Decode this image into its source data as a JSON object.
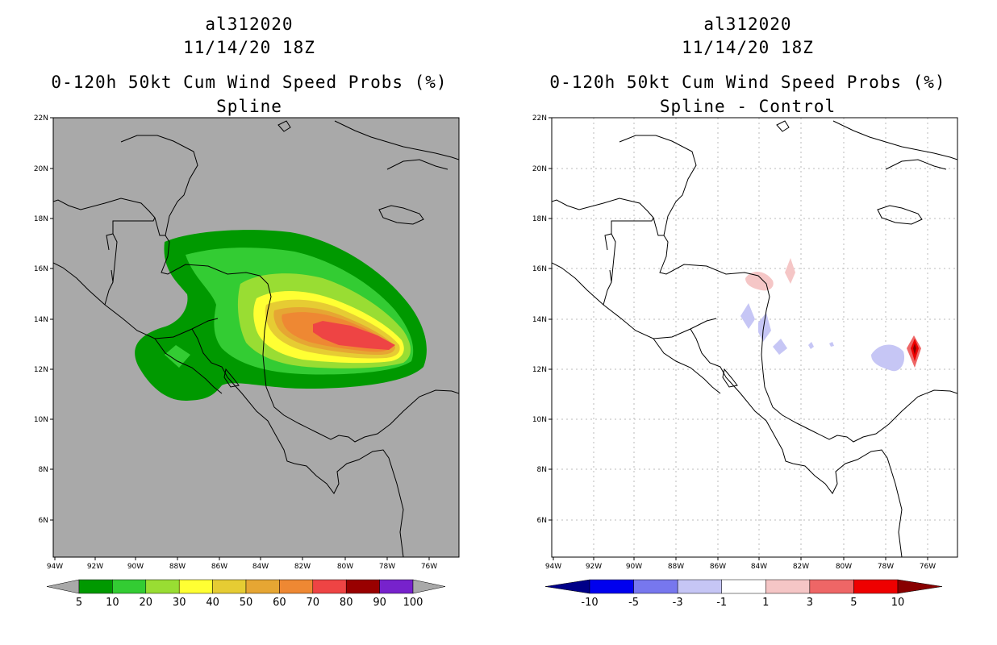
{
  "left": {
    "storm_id": "al312020",
    "datetime": "11/14/20 18Z",
    "product": "0-120h 50kt Cum Wind Speed Probs (%)",
    "subtitle": "Spline",
    "background_color": "#a9a9a9",
    "colorbar": {
      "colors": [
        "#009900",
        "#33cc33",
        "#99dd33",
        "#ffff33",
        "#e6cc33",
        "#e6a633",
        "#ee8833",
        "#ee4444",
        "#990000",
        "#7722cc"
      ],
      "end_left": "#a9a9a9",
      "end_right": "#a9a9a9",
      "labels": [
        "5",
        "10",
        "20",
        "30",
        "40",
        "50",
        "60",
        "70",
        "80",
        "90",
        "100"
      ]
    }
  },
  "right": {
    "storm_id": "al312020",
    "datetime": "11/14/20 18Z",
    "product": "0-120h 50kt Cum Wind Speed Probs (%)",
    "subtitle": "Spline - Control",
    "background_color": "#ffffff",
    "colorbar": {
      "colors": [
        "#0000ee",
        "#7777ee",
        "#c6c6f5",
        "#ffffff",
        "#f5c6c6",
        "#ee6666",
        "#ee0000"
      ],
      "end_left": "#000088",
      "end_right": "#880000",
      "labels": [
        "-10",
        "-5",
        "-3",
        "-1",
        "1",
        "3",
        "5",
        "10"
      ]
    }
  },
  "axes": {
    "lat_labels": [
      "22N",
      "20N",
      "18N",
      "16N",
      "14N",
      "12N",
      "10N",
      "8N",
      "6N"
    ],
    "lon_labels": [
      "94W",
      "92W",
      "90W",
      "88W",
      "86W",
      "84W",
      "82W",
      "80W",
      "78W",
      "76W"
    ]
  }
}
